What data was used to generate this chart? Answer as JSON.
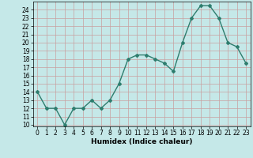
{
  "x": [
    0,
    1,
    2,
    3,
    4,
    5,
    6,
    7,
    8,
    9,
    10,
    11,
    12,
    13,
    14,
    15,
    16,
    17,
    18,
    19,
    20,
    21,
    22,
    23
  ],
  "y": [
    14,
    12,
    12,
    10,
    12,
    12,
    13,
    12,
    13,
    15,
    18,
    18.5,
    18.5,
    18,
    17.5,
    16.5,
    20,
    23,
    24.5,
    24.5,
    23,
    20,
    19.5,
    17.5
  ],
  "line_color": "#2e7d6e",
  "marker": "D",
  "marker_size": 2,
  "bg_color": "#c5e8e8",
  "grid_color": "#b0c8c8",
  "xlabel": "Humidex (Indice chaleur)",
  "ylim_min": 9.8,
  "ylim_max": 25.0,
  "xlim_min": -0.5,
  "xlim_max": 23.5,
  "yticks": [
    10,
    11,
    12,
    13,
    14,
    15,
    16,
    17,
    18,
    19,
    20,
    21,
    22,
    23,
    24
  ],
  "xticks": [
    0,
    1,
    2,
    3,
    4,
    5,
    6,
    7,
    8,
    9,
    10,
    11,
    12,
    13,
    14,
    15,
    16,
    17,
    18,
    19,
    20,
    21,
    22,
    23
  ],
  "line_width": 1.0,
  "tick_fontsize": 5.5,
  "xlabel_fontsize": 6.5
}
